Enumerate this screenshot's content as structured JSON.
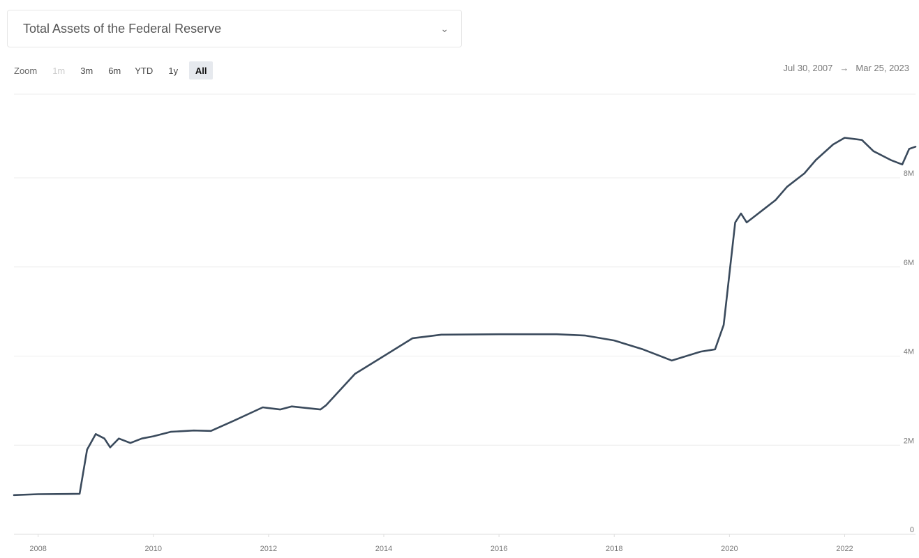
{
  "header": {
    "dataset_select": "Total Assets of the Federal Reserve"
  },
  "zoom": {
    "label": "Zoom",
    "buttons": [
      "1m",
      "3m",
      "6m",
      "YTD",
      "1y",
      "All"
    ],
    "active": "All",
    "disabled": [
      "1m"
    ]
  },
  "date_range": {
    "from": "Jul 30, 2007",
    "separator": "→",
    "to": "Mar 25, 2023"
  },
  "chart_data": {
    "type": "line",
    "title": "",
    "xlabel": "",
    "ylabel": "",
    "x_ticks": [
      "2008",
      "2010",
      "2012",
      "2014",
      "2016",
      "2018",
      "2020",
      "2022"
    ],
    "y_ticks": [
      "0",
      "2M",
      "4M",
      "6M",
      "8M"
    ],
    "xlim": [
      2007.58,
      2023.23
    ],
    "ylim": [
      0,
      8000000
    ],
    "grid": true,
    "line_color": "#3a4a5c",
    "series": [
      {
        "x": [
          2007.58,
          2008.0,
          2008.5,
          2008.72,
          2008.85,
          2009.0,
          2009.15,
          2009.25,
          2009.4,
          2009.6,
          2009.8,
          2010.0,
          2010.3,
          2010.7,
          2011.0,
          2011.4,
          2011.9,
          2012.2,
          2012.4,
          2012.9,
          2013.0,
          2013.5,
          2014.0,
          2014.5,
          2015.0,
          2016.0,
          2017.0,
          2017.5,
          2018.0,
          2018.5,
          2019.0,
          2019.5,
          2019.75,
          2019.9,
          2020.1,
          2020.2,
          2020.3,
          2020.4,
          2020.6,
          2020.8,
          2021.0,
          2021.3,
          2021.5,
          2021.8,
          2022.0,
          2022.3,
          2022.5,
          2022.8,
          2023.0,
          2023.12,
          2023.23
        ],
        "values": [
          880000,
          900000,
          905000,
          910000,
          1900000,
          2250000,
          2150000,
          1950000,
          2150000,
          2050000,
          2150000,
          2200000,
          2300000,
          2330000,
          2320000,
          2550000,
          2850000,
          2800000,
          2870000,
          2800000,
          2900000,
          3600000,
          4000000,
          4400000,
          4480000,
          4490000,
          4490000,
          4460000,
          4350000,
          4150000,
          3900000,
          4100000,
          4150000,
          4700000,
          7000000,
          7200000,
          7000000,
          7100000,
          7300000,
          7500000,
          7800000,
          8100000,
          8400000,
          8750000,
          8900000,
          8850000,
          8600000,
          8400000,
          8300000,
          8650000,
          8700000
        ]
      }
    ]
  }
}
